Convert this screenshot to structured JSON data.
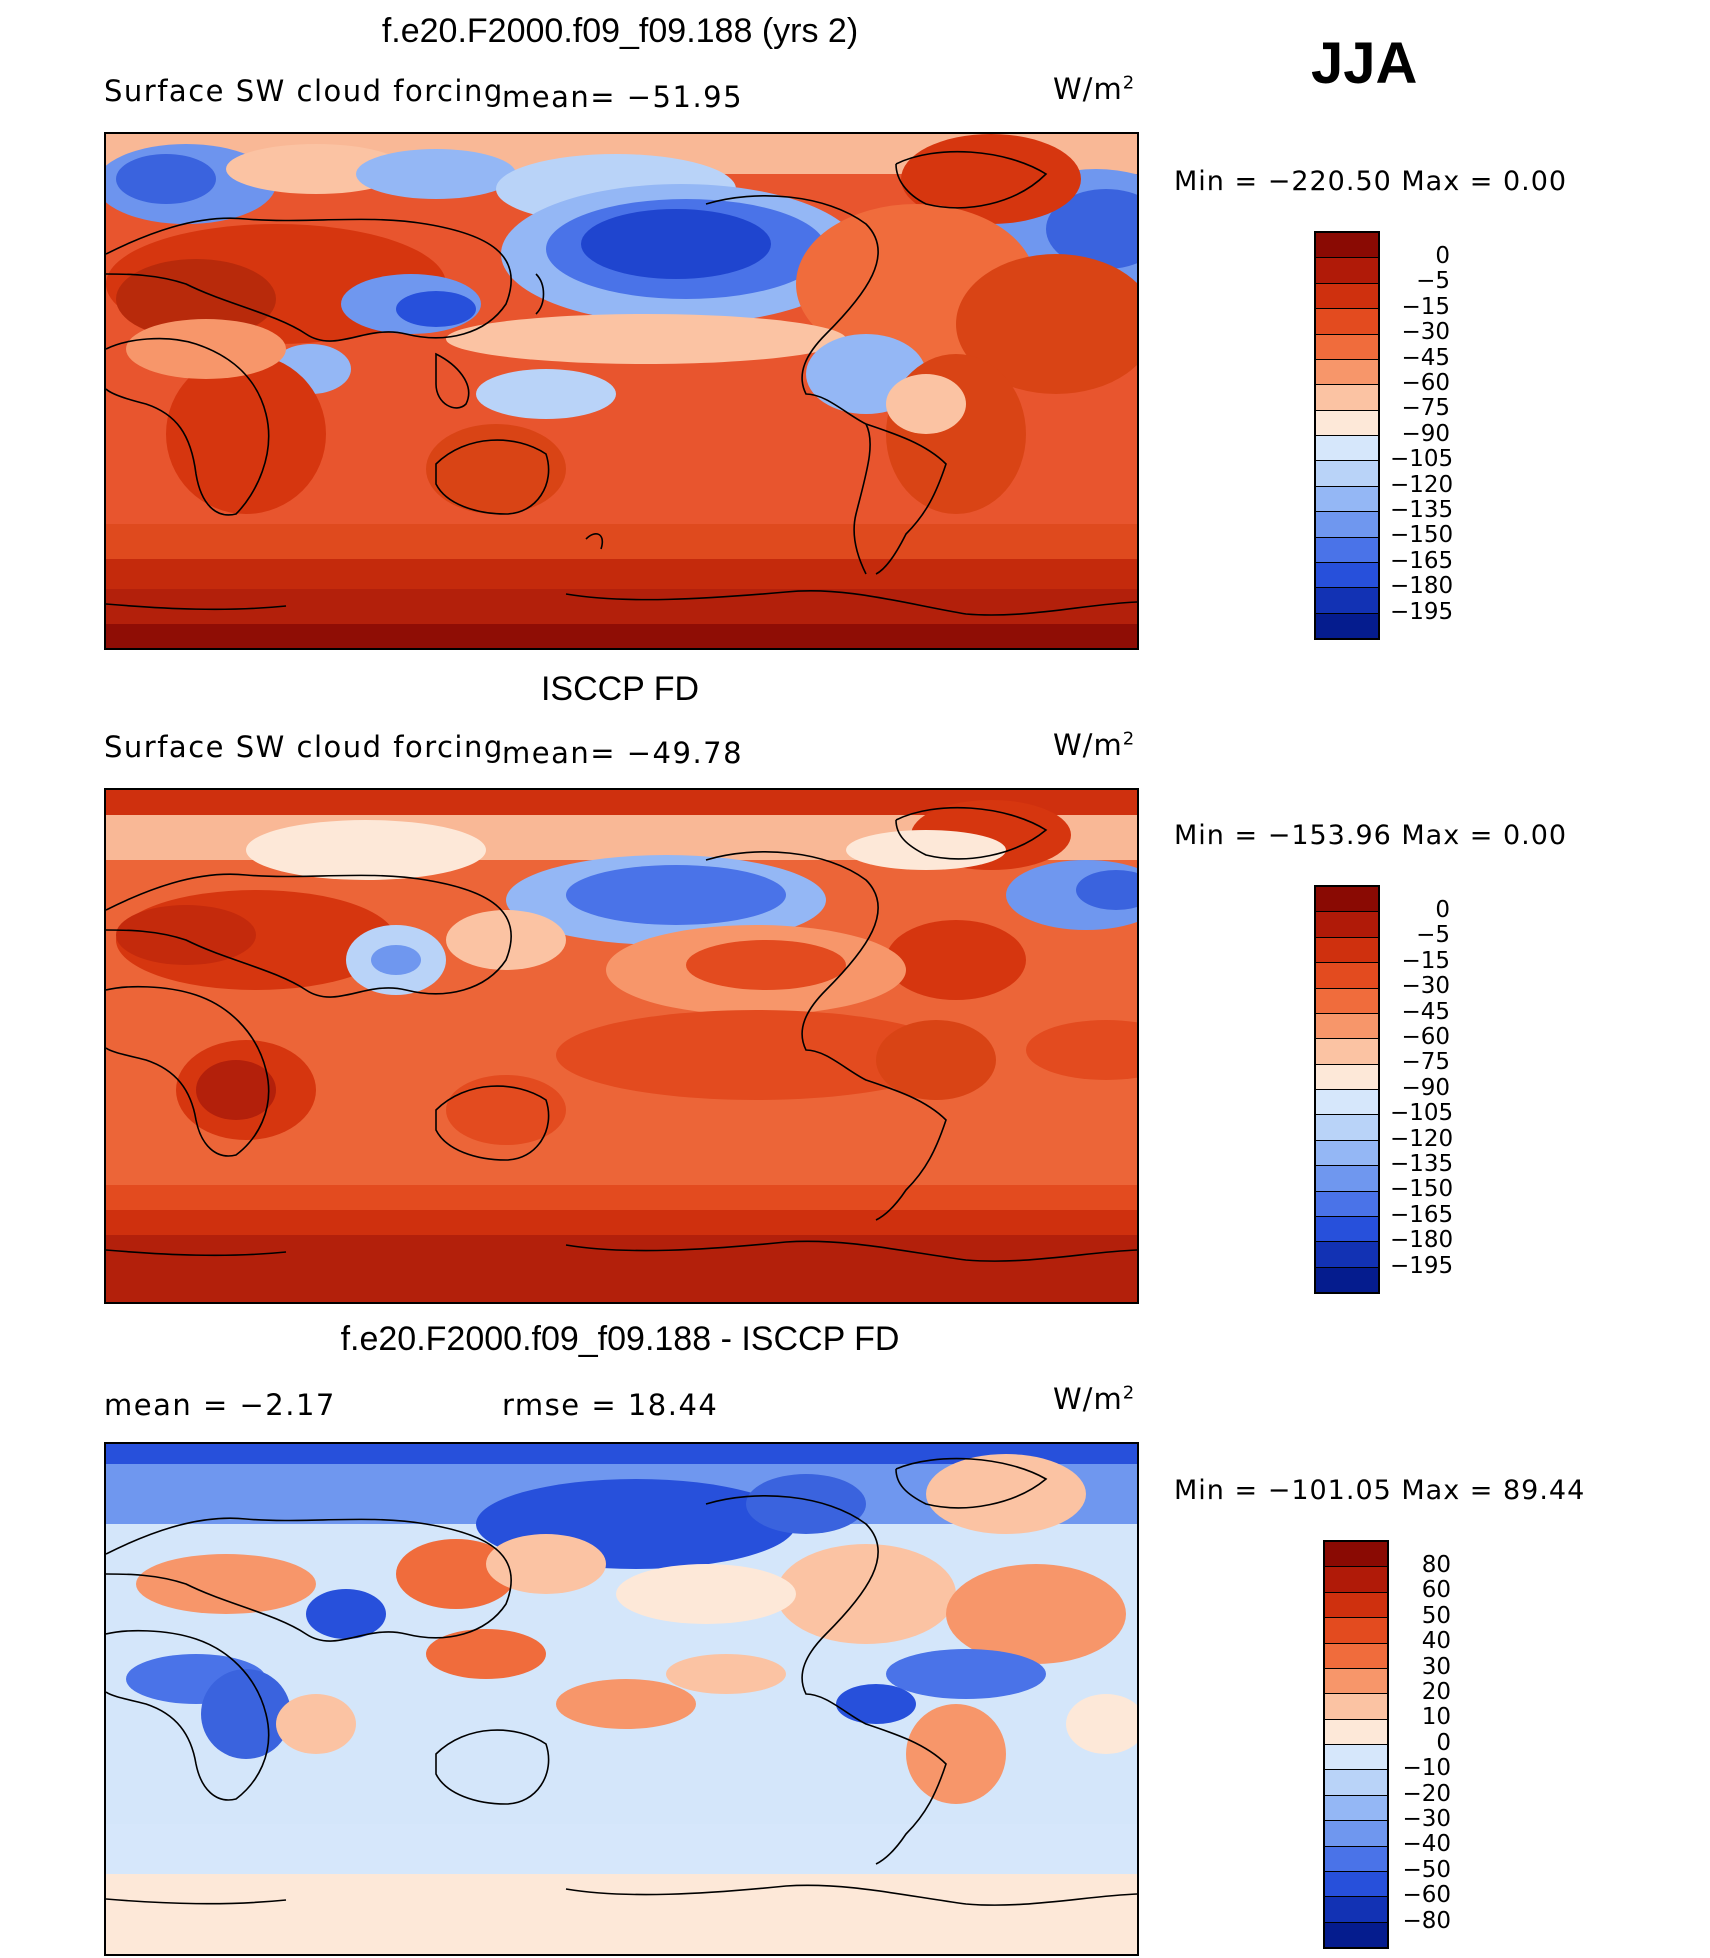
{
  "season": "JJA",
  "colors": {
    "bg": "#ffffff",
    "ocean_mid_model": "#e8552e",
    "ocean_mid_obs": "#ec6538",
    "polar_band": "#b3200b",
    "antarctic": "#8f0d05",
    "diff_neutral": "#d4e6fa",
    "diff_warm": "#ffe6d6"
  },
  "panels": [
    {
      "title": "f.e20.F2000.f09_f09.188 (yrs 2)",
      "subtitle": "Surface SW cloud forcing",
      "stat1": "mean= −51.95",
      "stat2": "",
      "units": "W/m",
      "units_sup": "2",
      "minmax": "Min  =  −220.50  Max  =      0.00",
      "colorbar_labels": [
        "0",
        "−5",
        "−15",
        "−30",
        "−45",
        "−60",
        "−75",
        "−90",
        "−105",
        "−120",
        "−135",
        "−150",
        "−165",
        "−180",
        "−195"
      ]
    },
    {
      "title": "ISCCP FD",
      "subtitle": "Surface SW cloud forcing",
      "stat1": "mean= −49.78",
      "stat2": "",
      "units": "W/m",
      "units_sup": "2",
      "minmax": "Min  =  −153.96  Max  =      0.00",
      "colorbar_labels": [
        "0",
        "−5",
        "−15",
        "−30",
        "−45",
        "−60",
        "−75",
        "−90",
        "−105",
        "−120",
        "−135",
        "−150",
        "−165",
        "−180",
        "−195"
      ]
    },
    {
      "title": "f.e20.F2000.f09_f09.188 - ISCCP FD",
      "subtitle": "mean  =    −2.17",
      "stat1": "",
      "stat2": "rmse  =    18.44",
      "units": "W/m",
      "units_sup": "2",
      "minmax": "Min  =  −101.05  Max  =   89.44",
      "colorbar_labels": [
        "80",
        "60",
        "50",
        "40",
        "30",
        "20",
        "10",
        "0",
        "−10",
        "−20",
        "−30",
        "−40",
        "−50",
        "−60",
        "−80"
      ]
    }
  ],
  "colorbar_abs": [
    "#8a0a03",
    "#b01a08",
    "#cf300e",
    "#e34b1f",
    "#f06c3c",
    "#f7966a",
    "#fbc3a3",
    "#fde8d8",
    "#d6e7fb",
    "#b9d3f8",
    "#94b7f5",
    "#6f97ef",
    "#4a73e8",
    "#2750db",
    "#1232b4",
    "#051c8e"
  ],
  "colorbar_diff": [
    "#8a0a03",
    "#b01a08",
    "#cf300e",
    "#e34b1f",
    "#f06c3c",
    "#f7966a",
    "#fbc3a3",
    "#fde8d8",
    "#d6e7fb",
    "#b9d3f8",
    "#94b7f5",
    "#6f97ef",
    "#4a73e8",
    "#2750db",
    "#1232b4",
    "#051c8e"
  ]
}
